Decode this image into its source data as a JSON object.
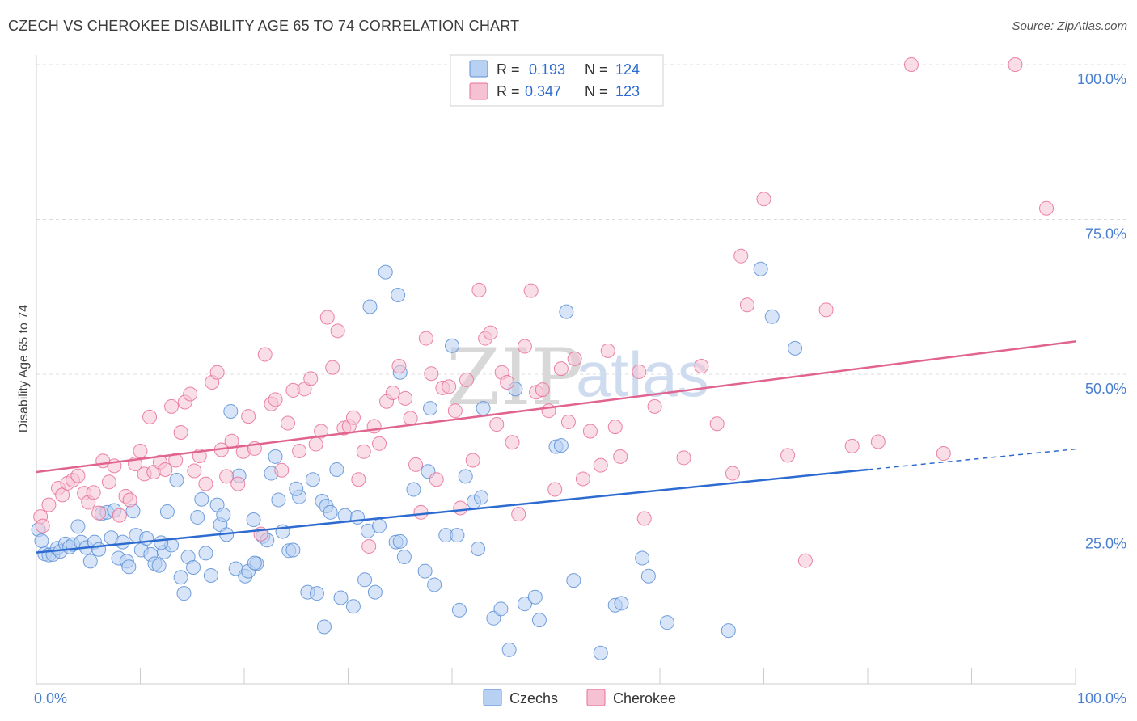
{
  "header": {
    "title": "CZECH VS CHEROKEE DISABILITY AGE 65 TO 74 CORRELATION CHART",
    "source": "Source: ZipAtlas.com"
  },
  "watermark": {
    "part1": "ZIP",
    "part2": "atlas"
  },
  "colors": {
    "czech": "#5b8fd6",
    "czech_fill": "#b8d0f2",
    "cherokee": "#e86f97",
    "cherokee_fill": "#f6c2d3",
    "czech_line": "#2d6bd0",
    "cherokee_line": "#e0648f",
    "axis_text": "#4a7fd0"
  },
  "legend": {
    "rows": [
      {
        "r_label": "R =",
        "r_value": "0.193",
        "n_label": "N =",
        "n_value": "124"
      },
      {
        "r_label": "R =",
        "r_value": "0.347",
        "n_label": "N =",
        "n_value": "123"
      }
    ]
  },
  "bottom_legend": [
    "Czechs",
    "Cherokee"
  ],
  "chart_data": {
    "type": "scatter",
    "title": "CZECH VS CHEROKEE DISABILITY AGE 65 TO 74 CORRELATION CHART",
    "xlabel": "",
    "ylabel": "Disability Age 65 to 74",
    "xlim": [
      0,
      100
    ],
    "ylim": [
      0,
      100
    ],
    "x_tick_labels": [
      "0.0%",
      "100.0%"
    ],
    "y_tick_labels": [
      "25.0%",
      "50.0%",
      "75.0%",
      "100.0%"
    ],
    "y_ticks": [
      25,
      50,
      75,
      100
    ],
    "grid": true,
    "legend_position": "top-center",
    "series": [
      {
        "name": "Czechs",
        "r": 0.193,
        "n": 124,
        "trend": {
          "x0": 0,
          "y0": 21.2,
          "x1": 80,
          "y1": 34.6,
          "dash_to_x": 100,
          "dash_to_y": 37.9
        },
        "points": [
          [
            0.2,
            24.9
          ],
          [
            0.5,
            23.1
          ],
          [
            0.8,
            21.0
          ],
          [
            1.2,
            20.8
          ],
          [
            1.6,
            20.9
          ],
          [
            2.0,
            21.9
          ],
          [
            2.3,
            21.4
          ],
          [
            2.8,
            22.6
          ],
          [
            3.2,
            22.1
          ],
          [
            3.5,
            22.5
          ],
          [
            4.0,
            25.4
          ],
          [
            4.3,
            22.9
          ],
          [
            4.8,
            22.0
          ],
          [
            5.2,
            19.8
          ],
          [
            5.6,
            22.9
          ],
          [
            6.0,
            21.7
          ],
          [
            6.3,
            27.5
          ],
          [
            6.8,
            27.7
          ],
          [
            7.2,
            23.6
          ],
          [
            7.5,
            28.0
          ],
          [
            7.9,
            20.3
          ],
          [
            8.3,
            22.9
          ],
          [
            8.7,
            19.8
          ],
          [
            8.9,
            18.9
          ],
          [
            9.3,
            27.9
          ],
          [
            9.6,
            24.0
          ],
          [
            10.1,
            21.6
          ],
          [
            10.6,
            23.5
          ],
          [
            11.0,
            20.9
          ],
          [
            11.4,
            19.4
          ],
          [
            11.8,
            19.1
          ],
          [
            12.3,
            21.3
          ],
          [
            12.6,
            27.8
          ],
          [
            13.0,
            22.4
          ],
          [
            13.5,
            32.9
          ],
          [
            13.9,
            17.2
          ],
          [
            14.2,
            14.6
          ],
          [
            14.6,
            20.5
          ],
          [
            15.1,
            18.8
          ],
          [
            15.5,
            26.9
          ],
          [
            15.9,
            29.8
          ],
          [
            16.3,
            21.1
          ],
          [
            16.8,
            17.5
          ],
          [
            17.4,
            28.9
          ],
          [
            17.7,
            25.7
          ],
          [
            18.0,
            27.3
          ],
          [
            18.3,
            24.1
          ],
          [
            18.7,
            44.0
          ],
          [
            19.2,
            18.6
          ],
          [
            19.5,
            33.6
          ],
          [
            20.1,
            17.4
          ],
          [
            20.4,
            18.2
          ],
          [
            20.9,
            26.5
          ],
          [
            21.2,
            19.4
          ],
          [
            21.8,
            23.8
          ],
          [
            22.2,
            23.2
          ],
          [
            22.6,
            34.0
          ],
          [
            23.0,
            36.7
          ],
          [
            23.3,
            29.7
          ],
          [
            23.7,
            24.6
          ],
          [
            24.3,
            21.5
          ],
          [
            24.7,
            21.6
          ],
          [
            25.3,
            30.2
          ],
          [
            26.1,
            14.8
          ],
          [
            26.6,
            33.0
          ],
          [
            27.0,
            14.6
          ],
          [
            27.5,
            29.5
          ],
          [
            27.9,
            28.7
          ],
          [
            28.3,
            27.7
          ],
          [
            28.9,
            34.6
          ],
          [
            29.3,
            13.9
          ],
          [
            29.7,
            27.2
          ],
          [
            30.5,
            12.5
          ],
          [
            30.9,
            26.9
          ],
          [
            31.6,
            16.8
          ],
          [
            31.9,
            24.7
          ],
          [
            32.1,
            60.9
          ],
          [
            32.6,
            14.8
          ],
          [
            33.0,
            25.5
          ],
          [
            33.6,
            66.5
          ],
          [
            34.6,
            22.9
          ],
          [
            34.8,
            62.8
          ],
          [
            35.0,
            50.3
          ],
          [
            35.4,
            20.5
          ],
          [
            36.3,
            31.4
          ],
          [
            37.4,
            18.2
          ],
          [
            37.7,
            34.3
          ],
          [
            37.9,
            44.5
          ],
          [
            38.3,
            16.0
          ],
          [
            39.4,
            24.0
          ],
          [
            40.0,
            54.6
          ],
          [
            40.7,
            11.9
          ],
          [
            41.3,
            33.5
          ],
          [
            42.1,
            29.4
          ],
          [
            42.5,
            21.8
          ],
          [
            42.8,
            30.1
          ],
          [
            43.0,
            44.5
          ],
          [
            44.0,
            10.6
          ],
          [
            44.7,
            12.1
          ],
          [
            45.5,
            5.5
          ],
          [
            46.1,
            47.6
          ],
          [
            47.0,
            12.9
          ],
          [
            48.0,
            14.0
          ],
          [
            48.4,
            10.3
          ],
          [
            50.0,
            38.3
          ],
          [
            51.0,
            60.1
          ],
          [
            51.7,
            16.7
          ],
          [
            54.3,
            5.0
          ],
          [
            55.7,
            12.7
          ],
          [
            56.3,
            13.0
          ],
          [
            58.3,
            20.3
          ],
          [
            58.9,
            17.4
          ],
          [
            60.7,
            9.9
          ],
          [
            66.6,
            8.6
          ],
          [
            69.7,
            67.0
          ],
          [
            70.8,
            59.3
          ],
          [
            73.0,
            54.2
          ],
          [
            50.5,
            38.5
          ],
          [
            40.5,
            24.0
          ],
          [
            35.0,
            23.0
          ],
          [
            25.0,
            31.5
          ],
          [
            27.7,
            9.2
          ],
          [
            21.0,
            19.5
          ],
          [
            12.0,
            22.8
          ]
        ]
      },
      {
        "name": "Cherokee",
        "r": 0.347,
        "n": 123,
        "trend": {
          "x0": 0,
          "y0": 34.2,
          "x1": 100,
          "y1": 55.3
        },
        "points": [
          [
            0.4,
            27.0
          ],
          [
            0.6,
            25.5
          ],
          [
            1.2,
            28.9
          ],
          [
            2.1,
            31.6
          ],
          [
            2.5,
            30.5
          ],
          [
            3.0,
            32.4
          ],
          [
            3.5,
            32.9
          ],
          [
            4.0,
            33.6
          ],
          [
            4.6,
            30.8
          ],
          [
            5.0,
            29.3
          ],
          [
            5.5,
            30.9
          ],
          [
            6.0,
            27.6
          ],
          [
            6.4,
            36.0
          ],
          [
            7.0,
            32.6
          ],
          [
            7.5,
            35.2
          ],
          [
            8.0,
            27.2
          ],
          [
            8.6,
            30.3
          ],
          [
            9.0,
            29.7
          ],
          [
            9.5,
            35.5
          ],
          [
            10.0,
            37.6
          ],
          [
            10.4,
            33.9
          ],
          [
            10.9,
            43.1
          ],
          [
            11.3,
            34.2
          ],
          [
            11.9,
            35.8
          ],
          [
            12.4,
            34.6
          ],
          [
            13.0,
            44.8
          ],
          [
            13.4,
            36.1
          ],
          [
            13.9,
            40.6
          ],
          [
            14.3,
            45.5
          ],
          [
            14.8,
            46.8
          ],
          [
            15.2,
            34.4
          ],
          [
            15.7,
            36.8
          ],
          [
            16.3,
            32.3
          ],
          [
            16.9,
            48.7
          ],
          [
            17.4,
            50.3
          ],
          [
            17.8,
            37.8
          ],
          [
            18.3,
            33.5
          ],
          [
            18.8,
            39.2
          ],
          [
            19.4,
            32.3
          ],
          [
            19.9,
            37.5
          ],
          [
            20.4,
            43.2
          ],
          [
            21.0,
            38.0
          ],
          [
            21.6,
            24.2
          ],
          [
            22.0,
            53.2
          ],
          [
            22.6,
            45.2
          ],
          [
            23.0,
            45.9
          ],
          [
            23.6,
            34.5
          ],
          [
            24.2,
            42.1
          ],
          [
            24.7,
            47.4
          ],
          [
            25.3,
            37.6
          ],
          [
            25.8,
            47.6
          ],
          [
            26.4,
            49.3
          ],
          [
            26.9,
            38.7
          ],
          [
            27.4,
            40.8
          ],
          [
            28.0,
            59.2
          ],
          [
            28.5,
            51.1
          ],
          [
            29.0,
            57.0
          ],
          [
            29.6,
            41.3
          ],
          [
            30.1,
            41.6
          ],
          [
            30.5,
            43.0
          ],
          [
            31.0,
            33.0
          ],
          [
            31.5,
            37.5
          ],
          [
            32.0,
            22.2
          ],
          [
            32.5,
            41.6
          ],
          [
            33.0,
            38.8
          ],
          [
            33.7,
            45.6
          ],
          [
            34.3,
            47.0
          ],
          [
            34.9,
            51.3
          ],
          [
            35.5,
            46.1
          ],
          [
            36.0,
            42.9
          ],
          [
            36.5,
            35.4
          ],
          [
            37.0,
            27.7
          ],
          [
            37.5,
            55.8
          ],
          [
            38.0,
            50.1
          ],
          [
            38.5,
            33.0
          ],
          [
            39.1,
            47.8
          ],
          [
            39.7,
            48.0
          ],
          [
            40.3,
            44.1
          ],
          [
            40.8,
            28.4
          ],
          [
            41.4,
            49.1
          ],
          [
            42.0,
            36.1
          ],
          [
            42.6,
            63.6
          ],
          [
            43.2,
            55.8
          ],
          [
            43.7,
            56.7
          ],
          [
            44.3,
            41.9
          ],
          [
            44.8,
            50.3
          ],
          [
            45.3,
            48.7
          ],
          [
            45.8,
            39.0
          ],
          [
            46.4,
            27.4
          ],
          [
            47.0,
            54.5
          ],
          [
            47.6,
            63.5
          ],
          [
            48.1,
            47.1
          ],
          [
            48.7,
            47.5
          ],
          [
            49.3,
            44.1
          ],
          [
            49.9,
            31.4
          ],
          [
            50.5,
            50.9
          ],
          [
            51.2,
            42.3
          ],
          [
            51.8,
            52.5
          ],
          [
            52.6,
            33.1
          ],
          [
            53.3,
            40.8
          ],
          [
            54.3,
            35.3
          ],
          [
            55.0,
            53.8
          ],
          [
            55.7,
            41.5
          ],
          [
            56.2,
            36.7
          ],
          [
            58.0,
            50.4
          ],
          [
            58.5,
            26.7
          ],
          [
            59.5,
            44.8
          ],
          [
            62.3,
            36.5
          ],
          [
            64.0,
            51.3
          ],
          [
            65.5,
            42.0
          ],
          [
            67.0,
            34.0
          ],
          [
            67.8,
            69.1
          ],
          [
            68.4,
            61.2
          ],
          [
            70.0,
            78.3
          ],
          [
            72.3,
            36.9
          ],
          [
            74.0,
            19.9
          ],
          [
            76.0,
            60.4
          ],
          [
            78.5,
            38.4
          ],
          [
            81.0,
            39.1
          ],
          [
            84.2,
            100.0
          ],
          [
            87.3,
            37.2
          ],
          [
            94.2,
            100.0
          ],
          [
            97.2,
            76.8
          ]
        ]
      }
    ]
  }
}
